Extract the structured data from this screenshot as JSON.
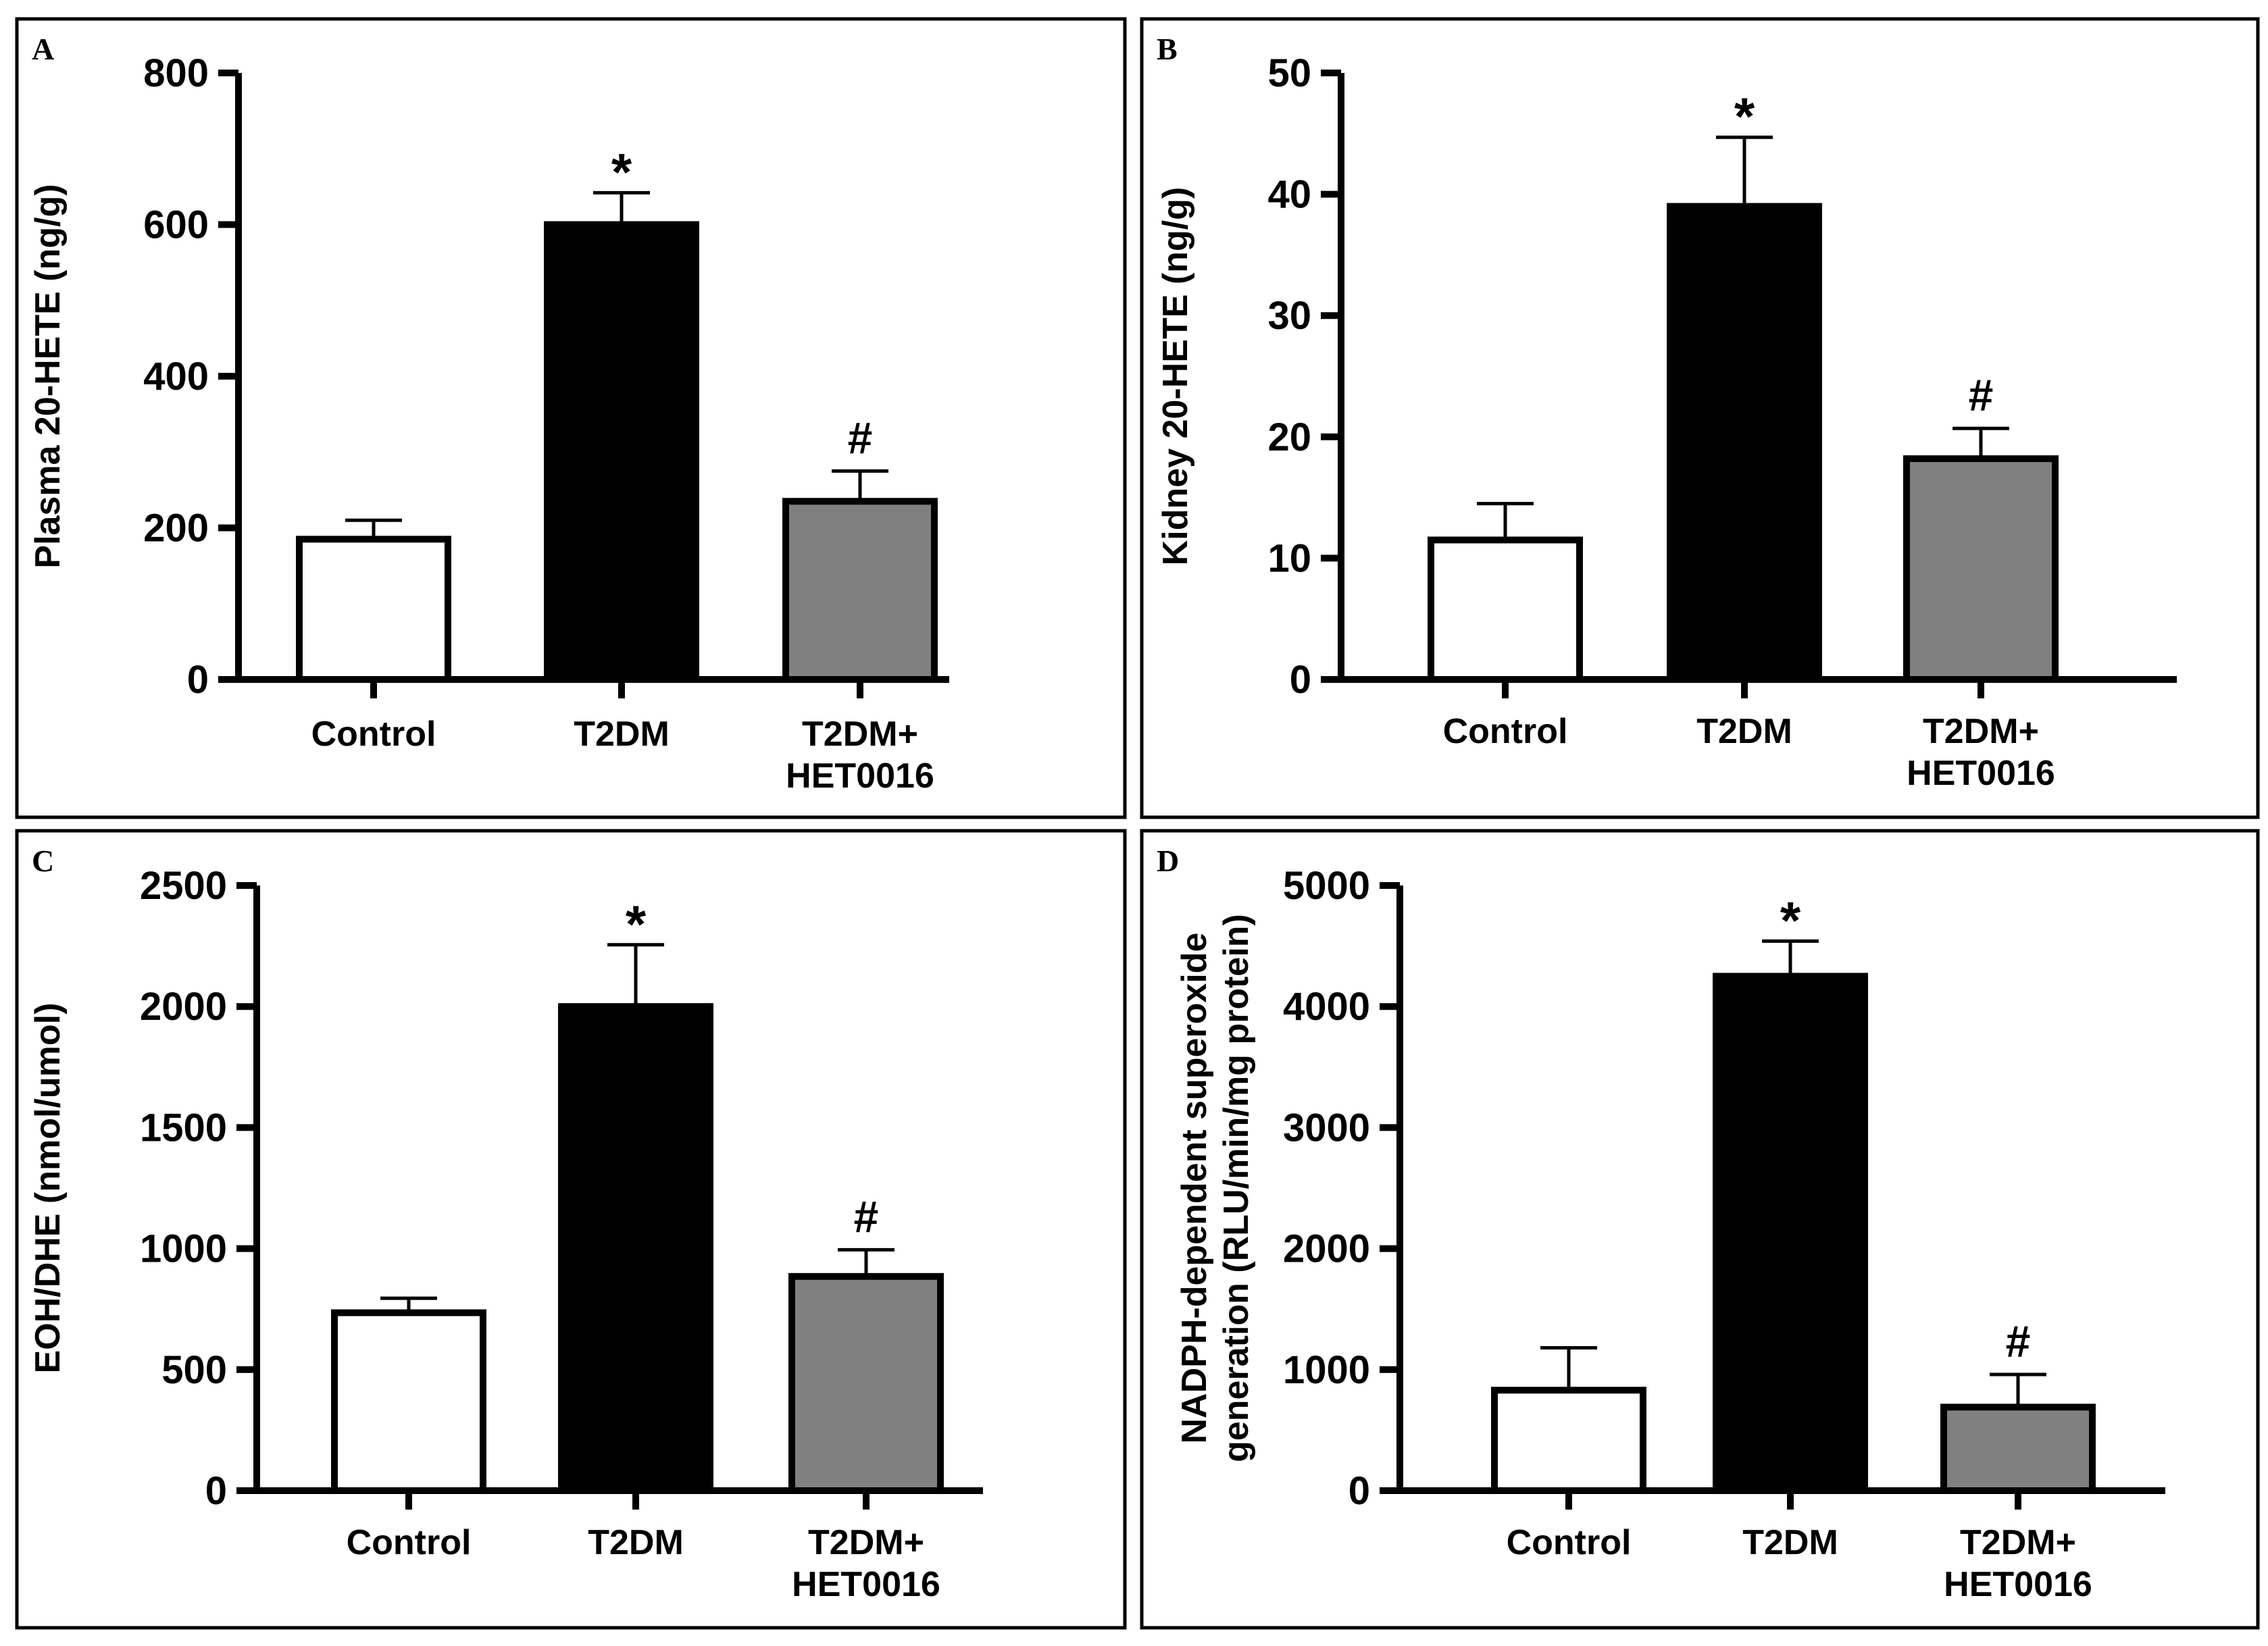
{
  "chart_data": [
    {
      "type": "bar",
      "panel_label": "A",
      "title": "",
      "xlabel": "",
      "ylabel": "Plasma 20-HETE (ng/g)",
      "ylim": [
        0,
        800
      ],
      "yticks": [
        "0",
        "200",
        "400",
        "600",
        "800"
      ],
      "grid": false,
      "categories": [
        [
          "Control"
        ],
        [
          "T2DM"
        ],
        [
          "T2DM+",
          "HET0016"
        ]
      ],
      "values": [
        185,
        600,
        235
      ],
      "errors": [
        25,
        42,
        40
      ],
      "annotations": [
        "",
        "*",
        "#"
      ],
      "colors": [
        "#ffffff",
        "#000000",
        "#808080"
      ]
    },
    {
      "type": "bar",
      "panel_label": "B",
      "title": "",
      "xlabel": "",
      "ylabel": "Kidney 20-HETE (ng/g)",
      "ylim": [
        0,
        50
      ],
      "yticks": [
        "0",
        "10",
        "20",
        "30",
        "40",
        "50"
      ],
      "grid": false,
      "categories": [
        [
          "Control"
        ],
        [
          "T2DM"
        ],
        [
          "T2DM+",
          "HET0016"
        ]
      ],
      "values": [
        11.5,
        39,
        18.2
      ],
      "errors": [
        3.0,
        5.7,
        2.5
      ],
      "annotations": [
        "",
        "*",
        "#"
      ],
      "colors": [
        "#ffffff",
        "#000000",
        "#808080"
      ]
    },
    {
      "type": "bar",
      "panel_label": "C",
      "title": "",
      "xlabel": "",
      "ylabel": "EOH/DHE (nmol/umol)",
      "ylim": [
        0,
        2500
      ],
      "yticks": [
        "0",
        "500",
        "1000",
        "1500",
        "2000",
        "2500"
      ],
      "grid": false,
      "categories": [
        [
          "Control"
        ],
        [
          "T2DM"
        ],
        [
          "T2DM+",
          "HET0016"
        ]
      ],
      "values": [
        735,
        2000,
        885
      ],
      "errors": [
        60,
        255,
        110
      ],
      "annotations": [
        "",
        "*",
        "#"
      ],
      "colors": [
        "#ffffff",
        "#000000",
        "#808080"
      ]
    },
    {
      "type": "bar",
      "panel_label": "D",
      "title": "",
      "xlabel": "",
      "ylabel": [
        "NADPH-dependent superoxide",
        "generation (RLU/min/mg protein)"
      ],
      "ylim": [
        0,
        5000
      ],
      "yticks": [
        "0",
        "1000",
        "2000",
        "3000",
        "4000",
        "5000"
      ],
      "grid": false,
      "categories": [
        [
          "Control"
        ],
        [
          "T2DM"
        ],
        [
          "T2DM+",
          "HET0016"
        ]
      ],
      "values": [
        830,
        4250,
        690
      ],
      "errors": [
        350,
        290,
        270
      ],
      "annotations": [
        "",
        "*",
        "#"
      ],
      "colors": [
        "#ffffff",
        "#000000",
        "#808080"
      ]
    }
  ]
}
